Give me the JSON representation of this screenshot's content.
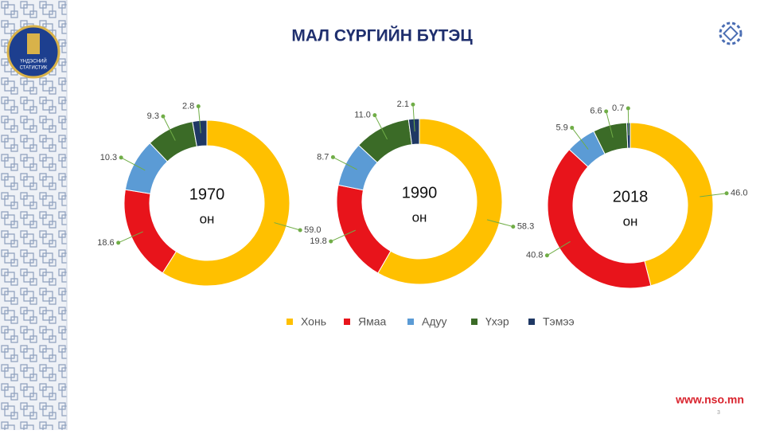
{
  "header": {
    "title": "МАЛ СҮРГИЙН БҮТЭЦ"
  },
  "logo": {
    "lines": [
      "ҮНДЭСНИЙ",
      "СТАТИСТИК"
    ]
  },
  "chart_data": [
    {
      "type": "pie",
      "title": "1970",
      "subtitle": "он",
      "categories": [
        "Хонь",
        "Ямаа",
        "Адуу",
        "Үхэр",
        "Тэмээ"
      ],
      "colors": [
        "#FFC000",
        "#E8141B",
        "#5B9BD5",
        "#3B6B27",
        "#1F3864"
      ],
      "values": [
        59.0,
        18.6,
        10.3,
        9.3,
        2.8
      ],
      "value_labels": [
        "59.0",
        "18.6",
        "10.3",
        "9.3",
        "2.8"
      ]
    },
    {
      "type": "pie",
      "title": "1990",
      "subtitle": "он",
      "categories": [
        "Хонь",
        "Ямаа",
        "Адуу",
        "Үхэр",
        "Тэмээ"
      ],
      "colors": [
        "#FFC000",
        "#E8141B",
        "#5B9BD5",
        "#3B6B27",
        "#1F3864"
      ],
      "values": [
        58.3,
        19.8,
        8.7,
        11.0,
        2.1
      ],
      "value_labels": [
        "58.3",
        "19.8",
        "8.7",
        "11.0",
        "2.1"
      ]
    },
    {
      "type": "pie",
      "title": "2018",
      "subtitle": "он",
      "categories": [
        "Хонь",
        "Ямаа",
        "Адуу",
        "Үхэр",
        "Тэмээ"
      ],
      "colors": [
        "#FFC000",
        "#E8141B",
        "#5B9BD5",
        "#3B6B27",
        "#1F3864"
      ],
      "values": [
        46.0,
        40.8,
        5.9,
        6.6,
        0.7
      ],
      "value_labels": [
        "46.0",
        "40.8",
        "5.9",
        "6.6",
        "0.7"
      ]
    }
  ],
  "footer": {
    "url": "www.nso.mn",
    "page": "3"
  }
}
